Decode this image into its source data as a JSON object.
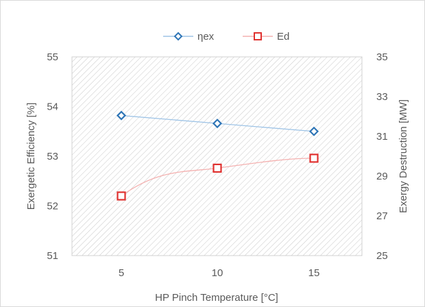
{
  "chart_data": {
    "type": "line",
    "x": [
      5,
      10,
      15
    ],
    "xlabel": "HP Pinch Temperature [°C]",
    "ylabel": "Exergetic Efficiency [%]",
    "y2label": "Exergy Destruction [MW]",
    "ylim": [
      51,
      55
    ],
    "y2lim": [
      25,
      35
    ],
    "yticks": [
      "51",
      "52",
      "53",
      "54",
      "55"
    ],
    "y2ticks": [
      "25",
      "27",
      "29",
      "31",
      "33",
      "35"
    ],
    "xticks": [
      "5",
      "10",
      "15"
    ],
    "legend_position": "top",
    "grid": "hatched plot area",
    "series": [
      {
        "name": "ηex",
        "axis": "left",
        "values": [
          53.82,
          53.66,
          53.5
        ],
        "color": "#2E75B6",
        "marker": "diamond"
      },
      {
        "name": "Ed",
        "axis": "right",
        "values": [
          28.0,
          29.4,
          29.9
        ],
        "color": "#E0312F",
        "marker": "square"
      }
    ]
  }
}
